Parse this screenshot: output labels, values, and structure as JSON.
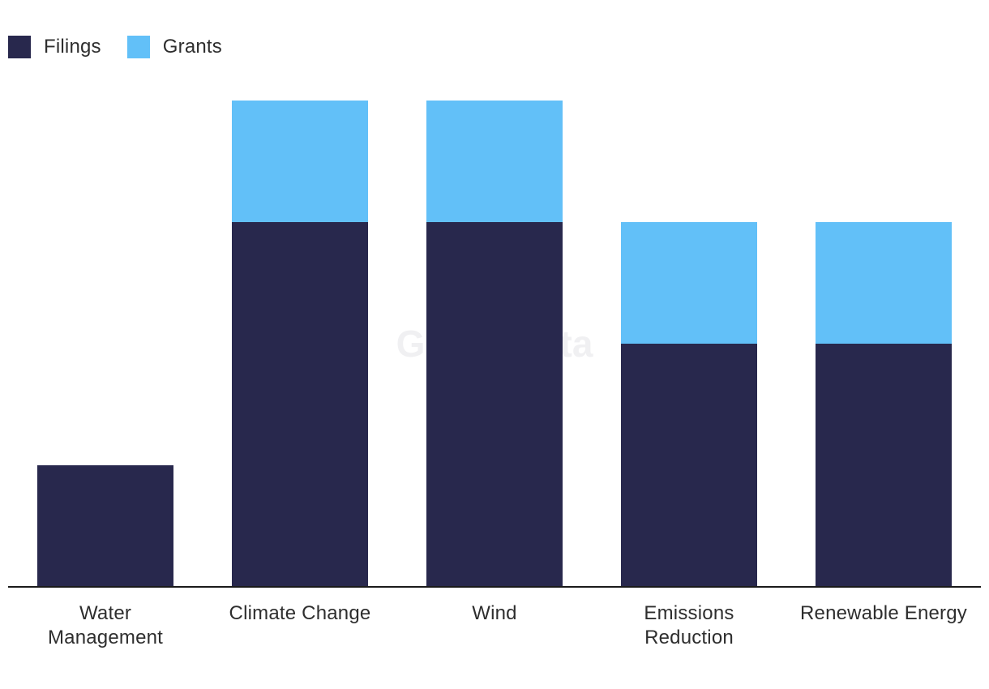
{
  "colors": {
    "filings": "#28284d",
    "grants": "#62c0f8",
    "axis": "#1a1a1a"
  },
  "watermark": "GlobalData",
  "chart_data": {
    "type": "bar",
    "stacked": true,
    "categories": [
      "Water Management",
      "Climate Change",
      "Wind",
      "Emissions Reduction",
      "Renewable Energy"
    ],
    "category_lines": [
      [
        "Water",
        "Management"
      ],
      [
        "Climate Change"
      ],
      [
        "Wind"
      ],
      [
        "Emissions",
        "Reduction"
      ],
      [
        "Renewable Energy"
      ]
    ],
    "series": [
      {
        "name": "Filings",
        "values": [
          1,
          3,
          3,
          2,
          2
        ]
      },
      {
        "name": "Grants",
        "values": [
          0,
          1,
          1,
          1,
          1
        ]
      }
    ],
    "ylim": [
      0,
      4
    ],
    "grid": false,
    "legend": "top-left",
    "title": "",
    "xlabel": "",
    "ylabel": ""
  }
}
